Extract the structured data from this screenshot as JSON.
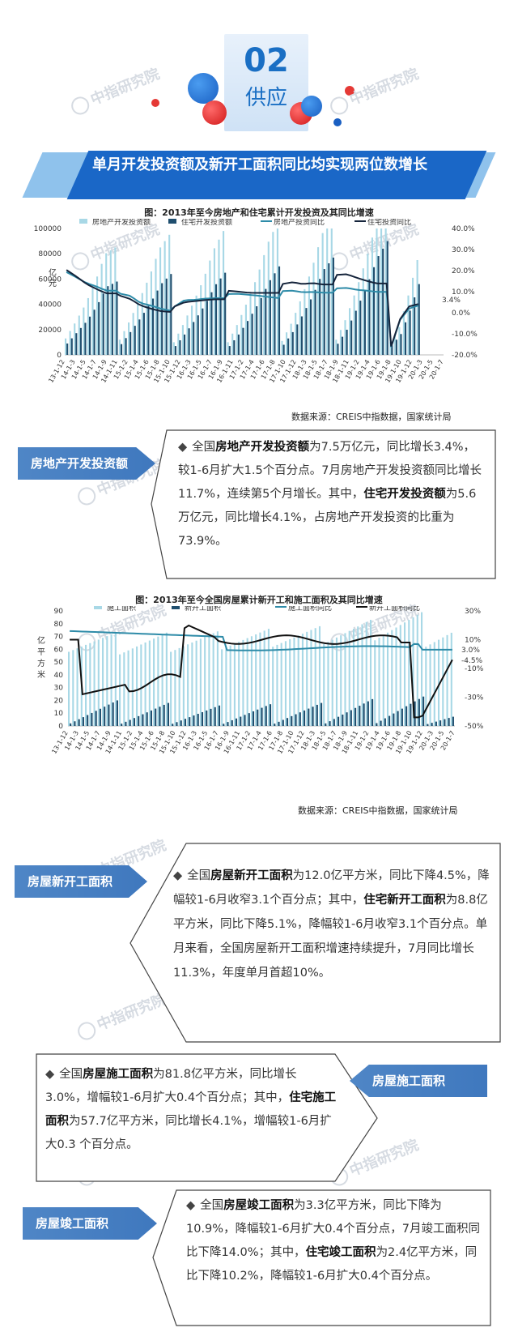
{
  "header": {
    "number": "02",
    "section": "供应"
  },
  "watermark": "中指研究院",
  "title_banner": "单月开发投资额及新开工面积同比均实现两位数增长",
  "chart1": {
    "caption": "图：2013年至今房地产和住宅累计开发投资及其同比增速",
    "source": "数据来源：CREIS中指数据，国家统计局",
    "unit": "亿元"
  },
  "chart2": {
    "caption": "图：2013年至今全国房屋累计新开工和施工面积及其同比增速",
    "source": "数据来源：CREIS中指数据，国家统计局",
    "unit": "亿平方米"
  },
  "chart_data": [
    {
      "type": "bar",
      "title": "图：2013年至今房地产和住宅累计开发投资及其同比增速",
      "ylabel": "亿元",
      "ylim": [
        0,
        100000
      ],
      "y2lim": [
        -20,
        40
      ],
      "yticks": [
        "100000",
        "80000",
        "60000",
        "40000",
        "20000",
        "0"
      ],
      "y2ticks": [
        "40.0%",
        "30.0%",
        "20.0%",
        "10.0%",
        "0.0%",
        "-10.0%",
        "-20.0%"
      ],
      "xticks": [
        "13-1-12",
        "14-1-3",
        "14-1-5",
        "14-1-7",
        "14-1-9",
        "14-1-11",
        "15-1-2",
        "15-1-4",
        "15-1-6",
        "15-1-8",
        "15-1-10",
        "15-1-12",
        "16-1-3",
        "16-1-5",
        "16-1-7",
        "16-1-9",
        "16-1-11",
        "17-1-2",
        "17-1-4",
        "17-1-6",
        "17-1-8",
        "17-1-10",
        "17-1-12",
        "18-1-3",
        "18-1-5",
        "18-1-7",
        "18-1-9",
        "18-1-11",
        "19-1-2",
        "19-1-4",
        "19-1-6",
        "19-1-8",
        "19-1-10",
        "19-1-12",
        "20-1-3",
        "20-1-5",
        "20-1-7"
      ],
      "legend_placement": "top",
      "series": [
        {
          "name": "房地产开发投资额",
          "color": "#a8d8e6"
        },
        {
          "name": "住宅开发投资额",
          "color": "#1f4e6e"
        },
        {
          "name": "房地产投资同比",
          "color": "#2e8ba8"
        },
        {
          "name": "住宅投资同比",
          "color": "#15243b"
        }
      ],
      "years": [
        {
          "re": [
            13000,
            26000,
            40000,
            58000,
            80000,
            85000
          ],
          "res": [
            9000,
            18000,
            27000,
            39000,
            54000,
            58000
          ],
          "re_yoy": [
            19.3,
            16.8,
            14.1,
            12.5,
            10.5,
            10.5
          ],
          "res_yoy": [
            20.3,
            17.2,
            13.7,
            11.3,
            9.2,
            9.2
          ]
        },
        {
          "re": [
            12000,
            27000,
            44000,
            62000,
            84000,
            95000
          ],
          "res": [
            8500,
            19000,
            30000,
            42000,
            56000,
            64000
          ],
          "re_yoy": [
            9.0,
            8.0,
            4.6,
            3.5,
            2.0,
            1.0
          ],
          "res_yoy": [
            8.0,
            6.5,
            3.5,
            2.0,
            0.8,
            0.4
          ]
        },
        {
          "re": [
            10000,
            25000,
            42000,
            60000,
            83000,
            98000
          ],
          "res": [
            7000,
            17000,
            28000,
            40000,
            55000,
            65000
          ],
          "re_yoy": [
            3.0,
            6.0,
            6.1,
            6.7,
            6.9,
            6.9
          ],
          "res_yoy": [
            3.0,
            5.0,
            5.5,
            6.0,
            6.4,
            6.4
          ]
        },
        {
          "re": [
            10000,
            25000,
            43000,
            63000,
            88000,
            105000
          ],
          "res": [
            7000,
            17000,
            29000,
            42000,
            58000,
            70000
          ],
          "re_yoy": [
            8.9,
            9.0,
            8.5,
            8.1,
            7.5,
            7.0
          ],
          "res_yoy": [
            10.4,
            10.0,
            9.5,
            9.4,
            9.4,
            9.4
          ]
        },
        {
          "re": [
            11000,
            26000,
            46000,
            68000,
            95000,
            110000
          ],
          "res": [
            8000,
            19000,
            33000,
            48000,
            67000,
            77000
          ],
          "re_yoy": [
            10.3,
            10.5,
            9.7,
            9.9,
            9.5,
            9.5
          ],
          "res_yoy": [
            13.7,
            14.5,
            13.6,
            14.1,
            13.4,
            13.4
          ],
          "xl": "lbl"
        },
        {
          "re": [
            12000,
            29000,
            51000,
            75000,
            103000,
            121000
          ],
          "res": [
            8800,
            21000,
            38000,
            56000,
            77000,
            90000
          ],
          "re_yoy": [
            11.6,
            11.8,
            10.9,
            10.5,
            9.9,
            9.9
          ],
          "res_yoy": [
            18.0,
            18.3,
            16.6,
            15.1,
            13.9,
            13.9
          ]
        },
        {
          "re": [
            10000,
            22000,
            47000,
            75000
          ],
          "res": [
            7500,
            16500,
            35000,
            56000
          ],
          "re_yoy": [
            -16.3,
            -3.3,
            2.0,
            3.4
          ],
          "res_yoy": [
            -16.0,
            -3.0,
            3.0,
            4.1
          ]
        }
      ]
    },
    {
      "type": "bar",
      "title": "图：2013年至今全国房屋累计新开工和施工面积及其同比增速",
      "ylabel": "亿平方米",
      "ylim": [
        0,
        90
      ],
      "y2lim": [
        -50,
        30
      ],
      "yticks": [
        "90",
        "80",
        "70",
        "60",
        "50",
        "40",
        "30",
        "20",
        "10",
        "0"
      ],
      "y2ticks": [
        "30%",
        "10%",
        "-10%",
        "-30%",
        "-50%"
      ],
      "xticks": [
        "13-1-12",
        "14-1-3",
        "14-1-5",
        "14-1-7",
        "14-1-9",
        "14-1-11",
        "15-1-2",
        "15-1-4",
        "15-1-6",
        "15-1-8",
        "15-1-10",
        "15-1-12",
        "16-1-3",
        "16-1-5",
        "16-1-7",
        "16-1-9",
        "16-1-11",
        "17-1-2",
        "17-1-4",
        "17-1-6",
        "17-1-8",
        "17-1-10",
        "17-1-12",
        "18-1-3",
        "18-1-5",
        "18-1-7",
        "18-1-9",
        "18-1-11",
        "19-1-2",
        "19-1-4",
        "19-1-6",
        "19-1-8",
        "19-1-10",
        "19-1-12",
        "20-1-3",
        "20-1-5",
        "20-1-7"
      ],
      "end_labels": [
        "3.0%",
        "-4.5%"
      ],
      "legend_placement": "top",
      "series": [
        {
          "name": "施工面积",
          "color": "#a8d8e6"
        },
        {
          "name": "新开工面积",
          "color": "#1f4e6e"
        },
        {
          "name": "施工面积同比",
          "color": "#2e8ba8"
        },
        {
          "name": "新开工面积同比",
          "color": "#111111"
        }
      ]
    }
  ],
  "sections": [
    {
      "tag": "房地产开发投资额",
      "paragraph": [
        "全国",
        "房地产开发投资额",
        "为7.5万亿元，同比增长3.4%，较1-6月扩大1.5个百分点。7月房地产开发投资额同比增长11.7%，连续第5个月增长。其中，",
        "住宅开发投资额",
        "为5.6万亿元，同比增长4.1%，占房地产开发投资的比重为73.9%。"
      ]
    },
    {
      "tag": "房屋新开工面积",
      "paragraph": [
        "全国",
        "房屋新开工面积",
        "为12.0亿平方米，同比下降4.5%，降幅较1-6月收窄3.1个百分点；其中，",
        "住宅新开工面积",
        "为8.8亿平方米，同比下降5.1%，降幅较1-6月收窄3.1个百分点。单月来看，全国房屋新开工面积增速持续提升，7月同比增长11.3%，年度单月首超10%。"
      ]
    },
    {
      "tag": "房屋施工面积",
      "paragraph": [
        "全国",
        "房屋施工面积",
        "为81.8亿平方米，同比增长3.0%，增幅较1-6月扩大0.4个百分点；其中，",
        "住宅施工面积",
        "为57.7亿平方米，同比增长4.1%，增幅较1-6月扩大0.3 个百分点。"
      ]
    },
    {
      "tag": "房屋竣工面积",
      "paragraph": [
        "全国",
        "房屋竣工面积",
        "为3.3亿平方米，同比下降为10.9%，降幅较1-6月扩大0.4个百分点，7月竣工面积同比下降14.0%；其中，",
        "住宅竣工面积",
        "为2.4亿平方米，同比下降10.2%，降幅较1-6月扩大0.4个百分点。"
      ]
    }
  ],
  "bullet": "◆"
}
